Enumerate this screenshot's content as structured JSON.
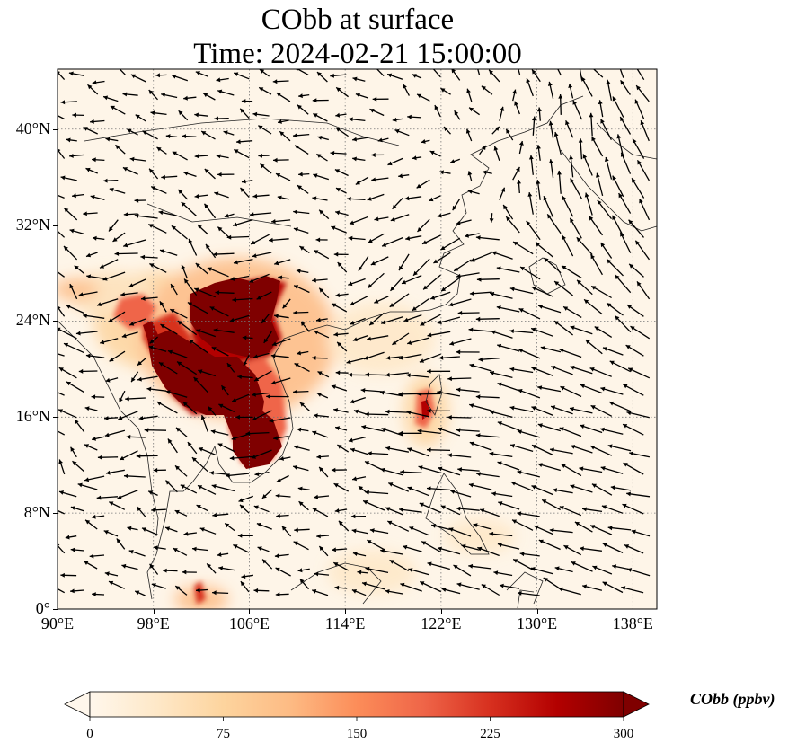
{
  "title": {
    "line1": "CObb at surface",
    "line2": "Time: 2024-02-21 15:00:00"
  },
  "map": {
    "type": "filled contour with wind vectors",
    "variable": "CObb",
    "level": "surface",
    "lon_range": [
      90,
      140
    ],
    "lat_range": [
      0,
      45
    ],
    "gridlines": "dotted",
    "background_color": "#fef5e8",
    "coastline_color": "#222222",
    "vector_color": "#000000"
  },
  "axes": {
    "x_ticks": [
      {
        "value": 90,
        "label": "90°E"
      },
      {
        "value": 98,
        "label": "98°E"
      },
      {
        "value": 106,
        "label": "106°E"
      },
      {
        "value": 114,
        "label": "114°E"
      },
      {
        "value": 122,
        "label": "122°E"
      },
      {
        "value": 130,
        "label": "130°E"
      },
      {
        "value": 138,
        "label": "138°E"
      }
    ],
    "y_ticks": [
      {
        "value": 0,
        "label": "0°"
      },
      {
        "value": 8,
        "label": "8°N"
      },
      {
        "value": 16,
        "label": "16°N"
      },
      {
        "value": 24,
        "label": "24°N"
      },
      {
        "value": 32,
        "label": "32°N"
      },
      {
        "value": 40,
        "label": "40°N"
      }
    ]
  },
  "colorbar": {
    "label": "CObb (ppbv)",
    "min": 0,
    "max": 300,
    "extend": "both",
    "colormap": "OrRd",
    "stops": [
      "#fff7ec",
      "#fee8c8",
      "#fdd49e",
      "#fdbb84",
      "#fc8d59",
      "#ef6548",
      "#d7301f",
      "#b30000",
      "#7f0000"
    ],
    "ticks": [
      {
        "value": 0,
        "label": "0"
      },
      {
        "value": 75,
        "label": "75"
      },
      {
        "value": 150,
        "label": "150"
      },
      {
        "value": 225,
        "label": "225"
      },
      {
        "value": 300,
        "label": "300"
      }
    ]
  }
}
